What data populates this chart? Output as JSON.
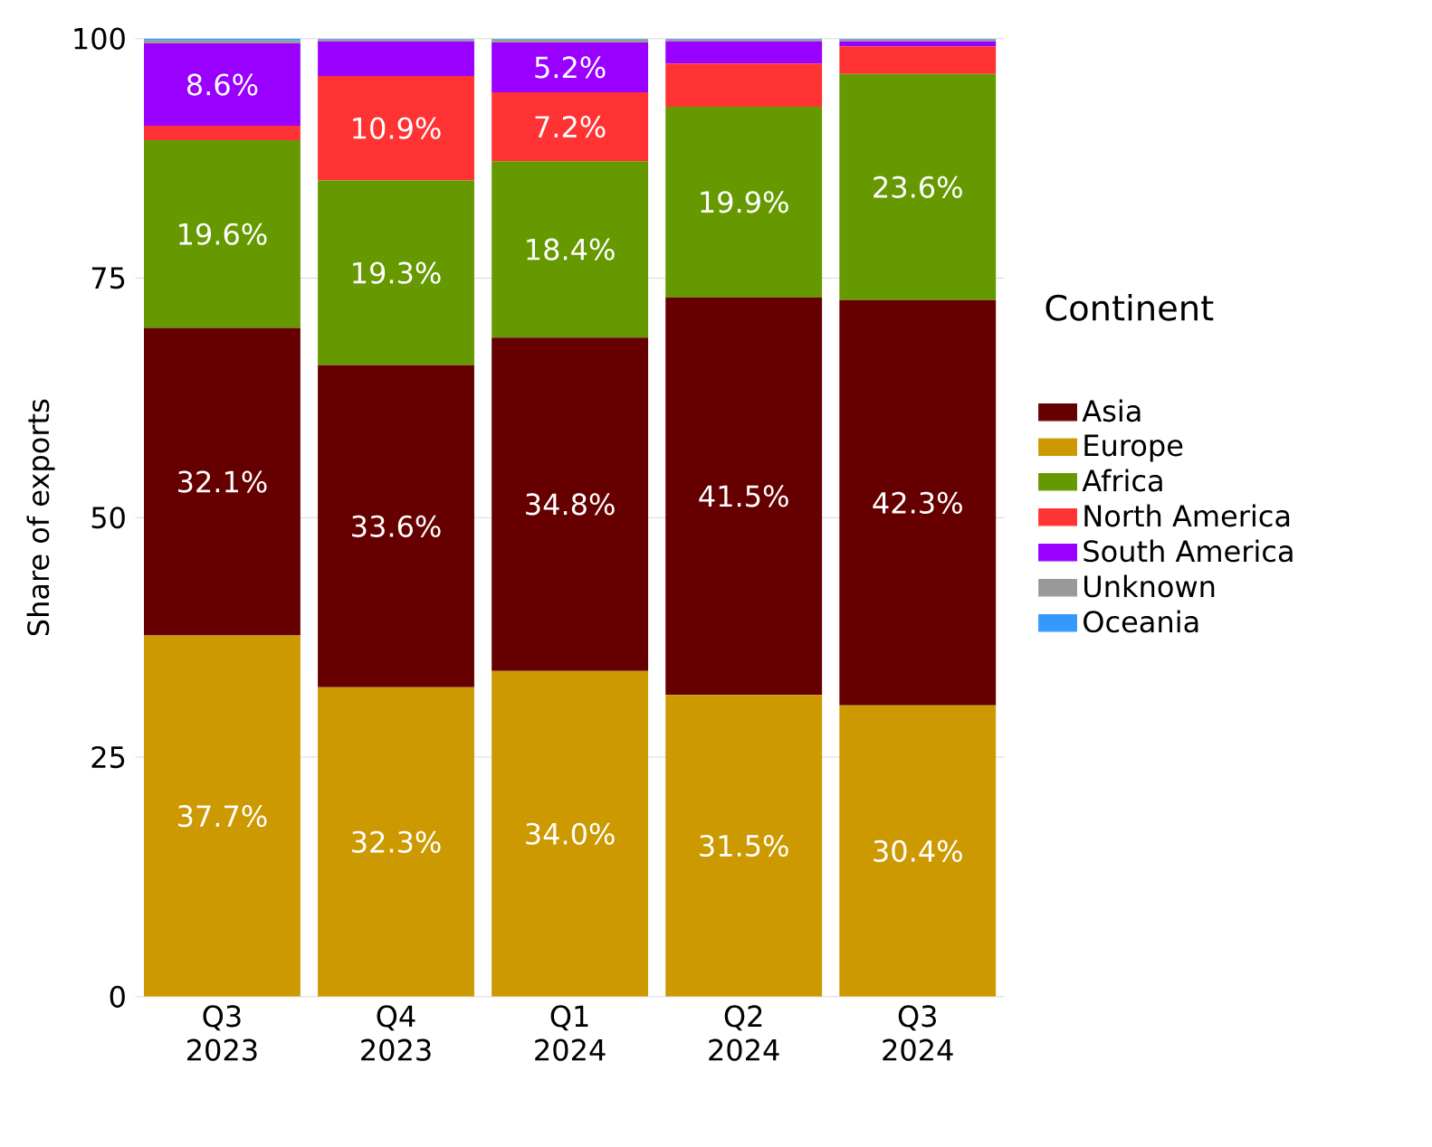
{
  "chart_data": {
    "type": "bar",
    "stacked": true,
    "ylabel": "Share of exports",
    "legend_title": "Continent",
    "legend": "right",
    "grid": "y",
    "categories": [
      "Q3 2023",
      "Q4 2023",
      "Q1 2024",
      "Q2 2024",
      "Q3 2024"
    ],
    "ylim": [
      0,
      100
    ],
    "yticks": [
      0,
      25,
      50,
      75,
      100
    ],
    "series": [
      {
        "name": "Europe",
        "color": "#cc9900",
        "values": [
          37.7,
          32.3,
          34.0,
          31.5,
          30.4
        ],
        "value_labels": [
          "37.7%",
          "32.3%",
          "34.0%",
          "31.5%",
          "30.4%"
        ]
      },
      {
        "name": "Asia",
        "color": "#660000",
        "values": [
          32.1,
          33.6,
          34.8,
          41.5,
          42.3
        ],
        "value_labels": [
          "32.1%",
          "33.6%",
          "34.8%",
          "41.5%",
          "42.3%"
        ]
      },
      {
        "name": "Africa",
        "color": "#669900",
        "values": [
          19.6,
          19.3,
          18.4,
          19.9,
          23.6
        ],
        "value_labels": [
          "19.6%",
          "19.3%",
          "18.4%",
          "19.9%",
          "23.6%"
        ]
      },
      {
        "name": "North America",
        "color": "#ff3333",
        "values": [
          1.5,
          10.9,
          7.2,
          4.5,
          2.9
        ],
        "value_labels": [
          null,
          "10.9%",
          "7.2%",
          null,
          null
        ]
      },
      {
        "name": "South America",
        "color": "#9900ff",
        "values": [
          8.6,
          3.6,
          5.2,
          2.3,
          0.5
        ],
        "value_labels": [
          "8.6%",
          null,
          "5.2%",
          null,
          null
        ]
      },
      {
        "name": "Unknown",
        "color": "#999999",
        "values": [
          0.3,
          0.2,
          0.3,
          0.2,
          0.2
        ]
      },
      {
        "name": "Oceania",
        "color": "#3399ff",
        "values": [
          0.2,
          0.1,
          0.1,
          0.1,
          0.1
        ]
      }
    ]
  }
}
